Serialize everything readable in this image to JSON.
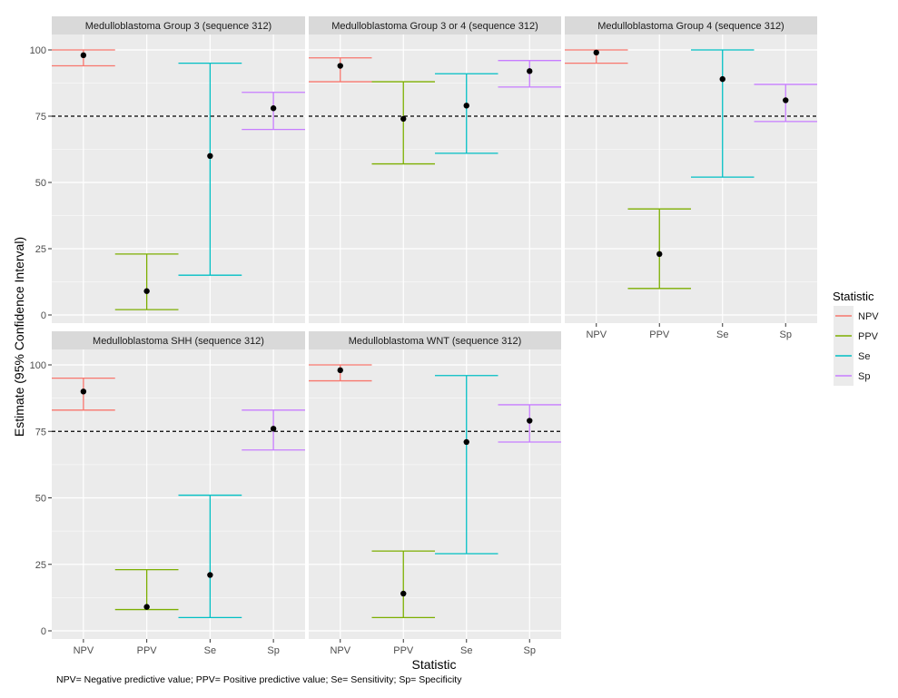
{
  "chart_data": {
    "type": "errorbar",
    "ylabel": "Estimate (95% Confidence Interval)",
    "xlabel": "Statistic",
    "ylim": [
      0,
      100
    ],
    "yticks": [
      0,
      25,
      50,
      75,
      100
    ],
    "reference_line": 75,
    "categories": [
      "NPV",
      "PPV",
      "Se",
      "Sp"
    ],
    "legend": {
      "title": "Statistic",
      "position": "right",
      "items": [
        "NPV",
        "PPV",
        "Se",
        "Sp"
      ]
    },
    "colors": {
      "NPV": "#F8766D",
      "PPV": "#7CAE00",
      "Se": "#00BFC4",
      "Sp": "#C77CFF"
    },
    "caption": "NPV= Negative predictive value; PPV= Positive predictive value; Se= Sensitivity; Sp= Specificity",
    "panels": [
      {
        "title": "Medulloblastoma Group 3 (sequence 312)",
        "points": [
          {
            "stat": "NPV",
            "estimate": 98,
            "lower": 94,
            "upper": 100
          },
          {
            "stat": "PPV",
            "estimate": 9,
            "lower": 2,
            "upper": 23
          },
          {
            "stat": "Se",
            "estimate": 60,
            "lower": 15,
            "upper": 95
          },
          {
            "stat": "Sp",
            "estimate": 78,
            "lower": 70,
            "upper": 84
          }
        ]
      },
      {
        "title": "Medulloblastoma Group 3 or 4 (sequence 312)",
        "points": [
          {
            "stat": "NPV",
            "estimate": 94,
            "lower": 88,
            "upper": 97
          },
          {
            "stat": "PPV",
            "estimate": 74,
            "lower": 57,
            "upper": 88
          },
          {
            "stat": "Se",
            "estimate": 79,
            "lower": 61,
            "upper": 91
          },
          {
            "stat": "Sp",
            "estimate": 92,
            "lower": 86,
            "upper": 96
          }
        ]
      },
      {
        "title": "Medulloblastoma Group 4 (sequence 312)",
        "points": [
          {
            "stat": "NPV",
            "estimate": 99,
            "lower": 95,
            "upper": 100
          },
          {
            "stat": "PPV",
            "estimate": 23,
            "lower": 10,
            "upper": 40
          },
          {
            "stat": "Se",
            "estimate": 89,
            "lower": 52,
            "upper": 100
          },
          {
            "stat": "Sp",
            "estimate": 81,
            "lower": 73,
            "upper": 87
          }
        ]
      },
      {
        "title": "Medulloblastoma SHH (sequence 312)",
        "points": [
          {
            "stat": "NPV",
            "estimate": 90,
            "lower": 83,
            "upper": 95
          },
          {
            "stat": "PPV",
            "estimate": 9,
            "lower": 8,
            "upper": 23
          },
          {
            "stat": "Se",
            "estimate": 21,
            "lower": 5,
            "upper": 51
          },
          {
            "stat": "Sp",
            "estimate": 76,
            "lower": 68,
            "upper": 83
          }
        ]
      },
      {
        "title": "Medulloblastoma WNT (sequence 312)",
        "points": [
          {
            "stat": "NPV",
            "estimate": 98,
            "lower": 94,
            "upper": 100
          },
          {
            "stat": "PPV",
            "estimate": 14,
            "lower": 5,
            "upper": 30
          },
          {
            "stat": "Se",
            "estimate": 71,
            "lower": 29,
            "upper": 96
          },
          {
            "stat": "Sp",
            "estimate": 79,
            "lower": 71,
            "upper": 85
          }
        ]
      }
    ]
  }
}
